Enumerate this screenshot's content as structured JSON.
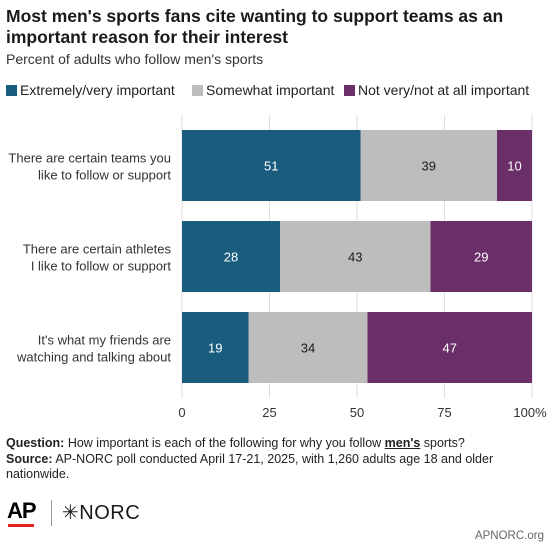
{
  "title": "Most men's sports fans cite wanting to support teams as an important reason for their interest",
  "subtitle": "Percent of adults who follow men's sports",
  "footer": {
    "question_label": "Question:",
    "question_text": "How important is each of the following for why you follow",
    "question_emphasis": "men's",
    "question_end": "sports?",
    "source_label": "Source:",
    "source_text": "AP-NORC poll conducted April 17-21, 2025, with 1,260 adults age 18 and older nationwide."
  },
  "logos": {
    "ap": "AP",
    "norc": "✳NORC"
  },
  "credit": "APNORC.org",
  "chart_data": {
    "type": "bar",
    "orientation": "horizontal",
    "stacked": true,
    "categories": [
      "There are certain teams you like to follow or support",
      "There are certain athletes I like to follow or support",
      "It's what my friends are watching and talking about"
    ],
    "category_lines": [
      [
        "There are certain teams you",
        "like to follow or support"
      ],
      [
        "There are certain athletes",
        "I like to follow or support"
      ],
      [
        "It's what my friends are",
        "watching and talking about"
      ]
    ],
    "series": [
      {
        "name": "Extremely/very important",
        "values": [
          51,
          28,
          19
        ],
        "color": "#1a5c7e",
        "label_color": "#ffffff"
      },
      {
        "name": "Somewhat important",
        "values": [
          39,
          43,
          34
        ],
        "color": "#bdbdbd",
        "label_color": "#1a1a1a"
      },
      {
        "name": "Not very/not at all important",
        "values": [
          10,
          29,
          47
        ],
        "color": "#6a2e68",
        "label_color": "#ffffff"
      }
    ],
    "xlim": [
      0,
      100
    ],
    "xticks": [
      0,
      25,
      50,
      75,
      100
    ],
    "xtick_labels": [
      "0",
      "25",
      "50",
      "75",
      "100%"
    ],
    "legend_position": "top",
    "grid": true
  }
}
